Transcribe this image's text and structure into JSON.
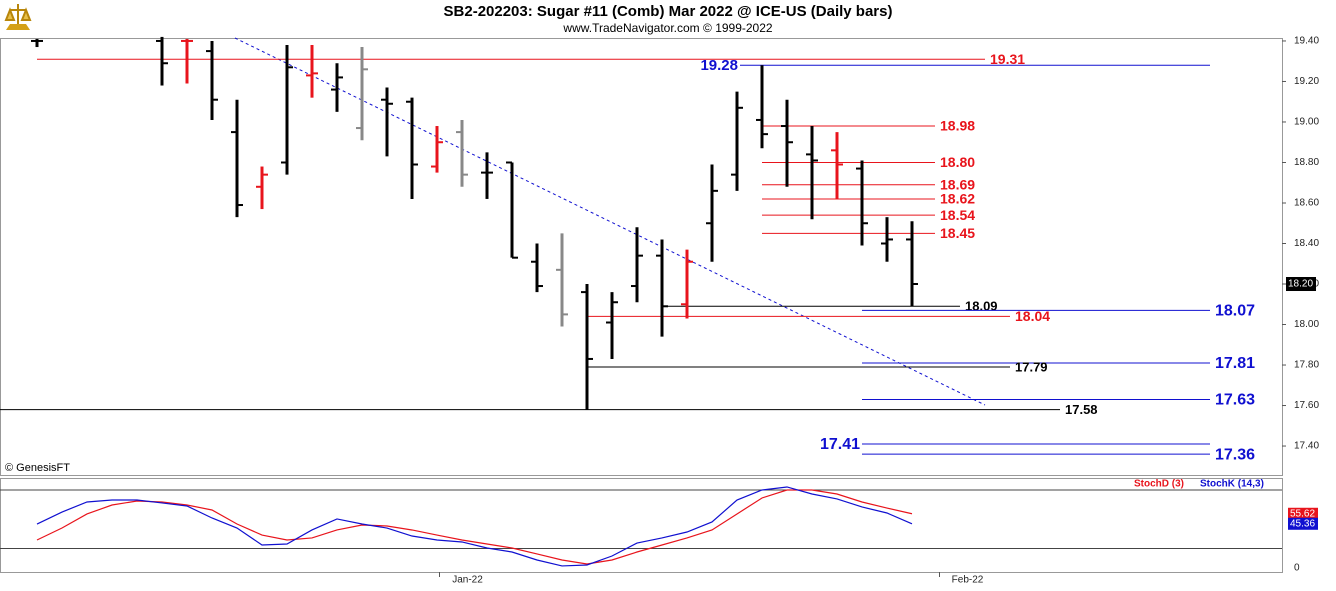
{
  "chart_data": [
    {
      "type": "ohlc",
      "title": "SB2-202203:  Sugar #11 (Comb) Mar 2022 @ ICE-US  (Daily bars)",
      "subtitle": "www.TradeNavigator.com © 1999-2022",
      "note": "© GenesisFT",
      "last": {
        "value": 18.2,
        "label": "18.20"
      },
      "xlim": [
        -1.48,
        49.8
      ],
      "xticks": [
        {
          "value": 16.1,
          "label": "Jan-22"
        },
        {
          "value": 36.1,
          "label": "Feb-22"
        }
      ],
      "ylim": [
        17.257,
        19.464
      ],
      "yticks": [
        {
          "value": 17.4,
          "label": "17.40"
        },
        {
          "value": 17.6,
          "label": "17.60"
        },
        {
          "value": 17.8,
          "label": "17.80"
        },
        {
          "value": 18.0,
          "label": "18.00"
        },
        {
          "value": 18.2,
          "label": "18.20"
        },
        {
          "value": 18.4,
          "label": "18.40"
        },
        {
          "value": 18.6,
          "label": "18.60"
        },
        {
          "value": 18.8,
          "label": "18.80"
        },
        {
          "value": 19.0,
          "label": "19.00"
        },
        {
          "value": 19.2,
          "label": "19.20"
        },
        {
          "value": 19.4,
          "label": "19.40"
        }
      ],
      "open": [
        19.4,
        null,
        null,
        null,
        null,
        19.4,
        19.4,
        19.35,
        18.95,
        18.68,
        18.8,
        19.23,
        19.16,
        18.97,
        19.11,
        19.1,
        18.78,
        18.95,
        18.75,
        18.8,
        18.31,
        18.27,
        18.16,
        18.01,
        18.19,
        18.34,
        18.1,
        18.5,
        18.74,
        19.01,
        18.98,
        18.84,
        18.86,
        18.77,
        18.4,
        18.42
      ],
      "high": [
        19.41,
        null,
        null,
        null,
        null,
        19.42,
        19.41,
        19.4,
        19.11,
        18.78,
        19.38,
        19.38,
        19.29,
        19.37,
        19.17,
        19.12,
        18.98,
        19.01,
        18.85,
        18.8,
        18.4,
        18.45,
        18.2,
        18.16,
        18.48,
        18.42,
        18.37,
        18.79,
        19.15,
        19.28,
        19.11,
        18.98,
        18.95,
        18.81,
        18.53,
        18.51
      ],
      "low": [
        19.37,
        null,
        null,
        null,
        null,
        19.18,
        19.19,
        19.01,
        18.53,
        18.57,
        18.74,
        19.12,
        19.05,
        18.91,
        18.83,
        18.62,
        18.75,
        18.68,
        18.62,
        18.33,
        18.16,
        17.99,
        17.58,
        17.83,
        18.11,
        17.94,
        18.03,
        18.31,
        18.66,
        18.87,
        18.68,
        18.52,
        18.62,
        18.39,
        18.31,
        18.09
      ],
      "close": [
        19.4,
        null,
        null,
        null,
        null,
        19.29,
        19.4,
        19.11,
        18.59,
        18.74,
        19.27,
        19.24,
        19.22,
        19.26,
        19.09,
        18.79,
        18.9,
        18.74,
        18.75,
        18.33,
        18.19,
        18.05,
        17.83,
        18.11,
        18.34,
        18.09,
        18.31,
        18.66,
        19.07,
        18.94,
        18.9,
        18.81,
        18.79,
        18.5,
        18.42,
        18.2
      ],
      "colors": [
        "#000000",
        null,
        null,
        null,
        null,
        "#000000",
        "#e8141c",
        "#000000",
        "#000000",
        "#e8141c",
        "#000000",
        "#e8141c",
        "#000000",
        "#888888",
        "#000000",
        "#000000",
        "#e8141c",
        "#888888",
        "#000000",
        "#000000",
        "#000000",
        "#888888",
        "#000000",
        "#000000",
        "#000000",
        "#000000",
        "#e8141c",
        "#000000",
        "#000000",
        "#000000",
        "#000000",
        "#000000",
        "#e8141c",
        "#000000",
        "#000000",
        "#000000"
      ],
      "levels": [
        {
          "value": 19.31,
          "label": "19.31",
          "color": "#e8141c"
        },
        {
          "value": 19.28,
          "label": "19.28",
          "color": "#1010d0"
        },
        {
          "value": 18.98,
          "label": "18.98",
          "color": "#e8141c"
        },
        {
          "value": 18.8,
          "label": "18.80",
          "color": "#e8141c"
        },
        {
          "value": 18.69,
          "label": "18.69",
          "color": "#e8141c"
        },
        {
          "value": 18.62,
          "label": "18.62",
          "color": "#e8141c"
        },
        {
          "value": 18.54,
          "label": "18.54",
          "color": "#e8141c"
        },
        {
          "value": 18.45,
          "label": "18.45",
          "color": "#e8141c"
        },
        {
          "value": 18.09,
          "label": "18.09",
          "color": "#000000"
        },
        {
          "value": 18.04,
          "label": "18.04",
          "color": "#e8141c"
        },
        {
          "value": 18.07,
          "label": "18.07",
          "color": "#1010d0"
        },
        {
          "value": 17.81,
          "label": "17.81",
          "color": "#1010d0"
        },
        {
          "value": 17.79,
          "label": "17.79",
          "color": "#000000"
        },
        {
          "value": 17.63,
          "label": "17.63",
          "color": "#1010d0"
        },
        {
          "value": 17.58,
          "label": "17.58",
          "color": "#000000"
        },
        {
          "value": 17.41,
          "label": "17.41",
          "color": "#1010d0"
        },
        {
          "value": 17.36,
          "label": "17.36",
          "color": "#1010d0"
        }
      ]
    },
    {
      "type": "line",
      "ylim": [
        -4.1,
        92.3
      ],
      "yticks": [
        0
      ],
      "hlines": [
        20,
        80
      ],
      "series": [
        {
          "name": "StochD (3)",
          "color": "#e8141c",
          "values": [
            28.7,
            41.0,
            55.4,
            64.6,
            68.7,
            67.7,
            64.6,
            59.5,
            45.1,
            33.8,
            28.7,
            30.8,
            39.0,
            44.1,
            43.1,
            39.0,
            33.8,
            28.7,
            24.6,
            20.5,
            14.4,
            8.2,
            4.1,
            8.2,
            16.4,
            23.6,
            30.8,
            39.0,
            55.4,
            71.8,
            80.0,
            80.0,
            75.9,
            67.7,
            61.5,
            55.62
          ]
        },
        {
          "name": "StochK (14,3)",
          "color": "#1010d0",
          "values": [
            45.1,
            57.4,
            67.7,
            69.7,
            69.7,
            66.7,
            63.6,
            51.3,
            41.0,
            23.6,
            24.6,
            39.0,
            50.3,
            45.1,
            41.0,
            32.8,
            28.7,
            26.7,
            20.5,
            16.4,
            8.2,
            2.1,
            3.1,
            12.3,
            25.6,
            30.8,
            36.9,
            47.2,
            69.7,
            80.0,
            83.1,
            75.9,
            70.8,
            62.6,
            56.4,
            45.36
          ]
        }
      ]
    }
  ]
}
